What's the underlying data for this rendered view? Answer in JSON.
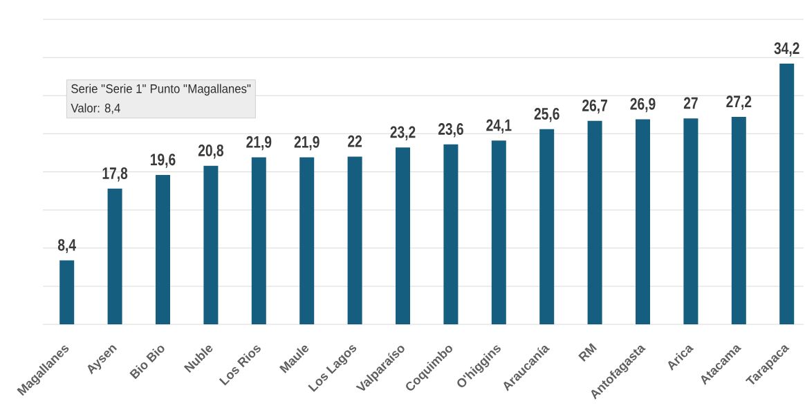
{
  "chart_data": {
    "type": "bar",
    "categories": [
      "Magallanes",
      "Aysen",
      "Bio Bio",
      "Nuble",
      "Los Rios",
      "Maule",
      "Los Lagos",
      "Valparaíso",
      "Coquimbo",
      "O'higgins",
      "Araucanía",
      "RM",
      "Antofagasta",
      "Arica",
      "Atacama",
      "Tarapaca"
    ],
    "values": [
      8.4,
      17.8,
      19.6,
      20.8,
      21.9,
      21.9,
      22,
      23.2,
      23.6,
      24.1,
      25.6,
      26.7,
      26.9,
      27,
      27.2,
      34.2
    ],
    "value_labels": [
      "8,4",
      "17,8",
      "19,6",
      "20,8",
      "21,9",
      "21,9",
      "22",
      "23,2",
      "23,6",
      "24,1",
      "25,6",
      "26,7",
      "26,9",
      "27",
      "27,2",
      "34,2"
    ],
    "color": "#165e80",
    "ylim": [
      0,
      40
    ],
    "yticks": [
      {
        "value": 0,
        "label": null
      },
      {
        "value": 5,
        "label": null
      },
      {
        "value": 10,
        "label": null
      },
      {
        "value": 15,
        "label": null
      },
      {
        "value": 20,
        "label": null
      },
      {
        "value": 25,
        "label": null
      },
      {
        "value": 30,
        "label": null
      },
      {
        "value": 35,
        "label": null
      },
      {
        "value": 40,
        "label": null
      }
    ],
    "grid": "y",
    "tick_labels": "x",
    "annotations": [
      "Serie \"Serie 1\" Punto \"Magallanes\"",
      "Valor: 8,4"
    ]
  }
}
